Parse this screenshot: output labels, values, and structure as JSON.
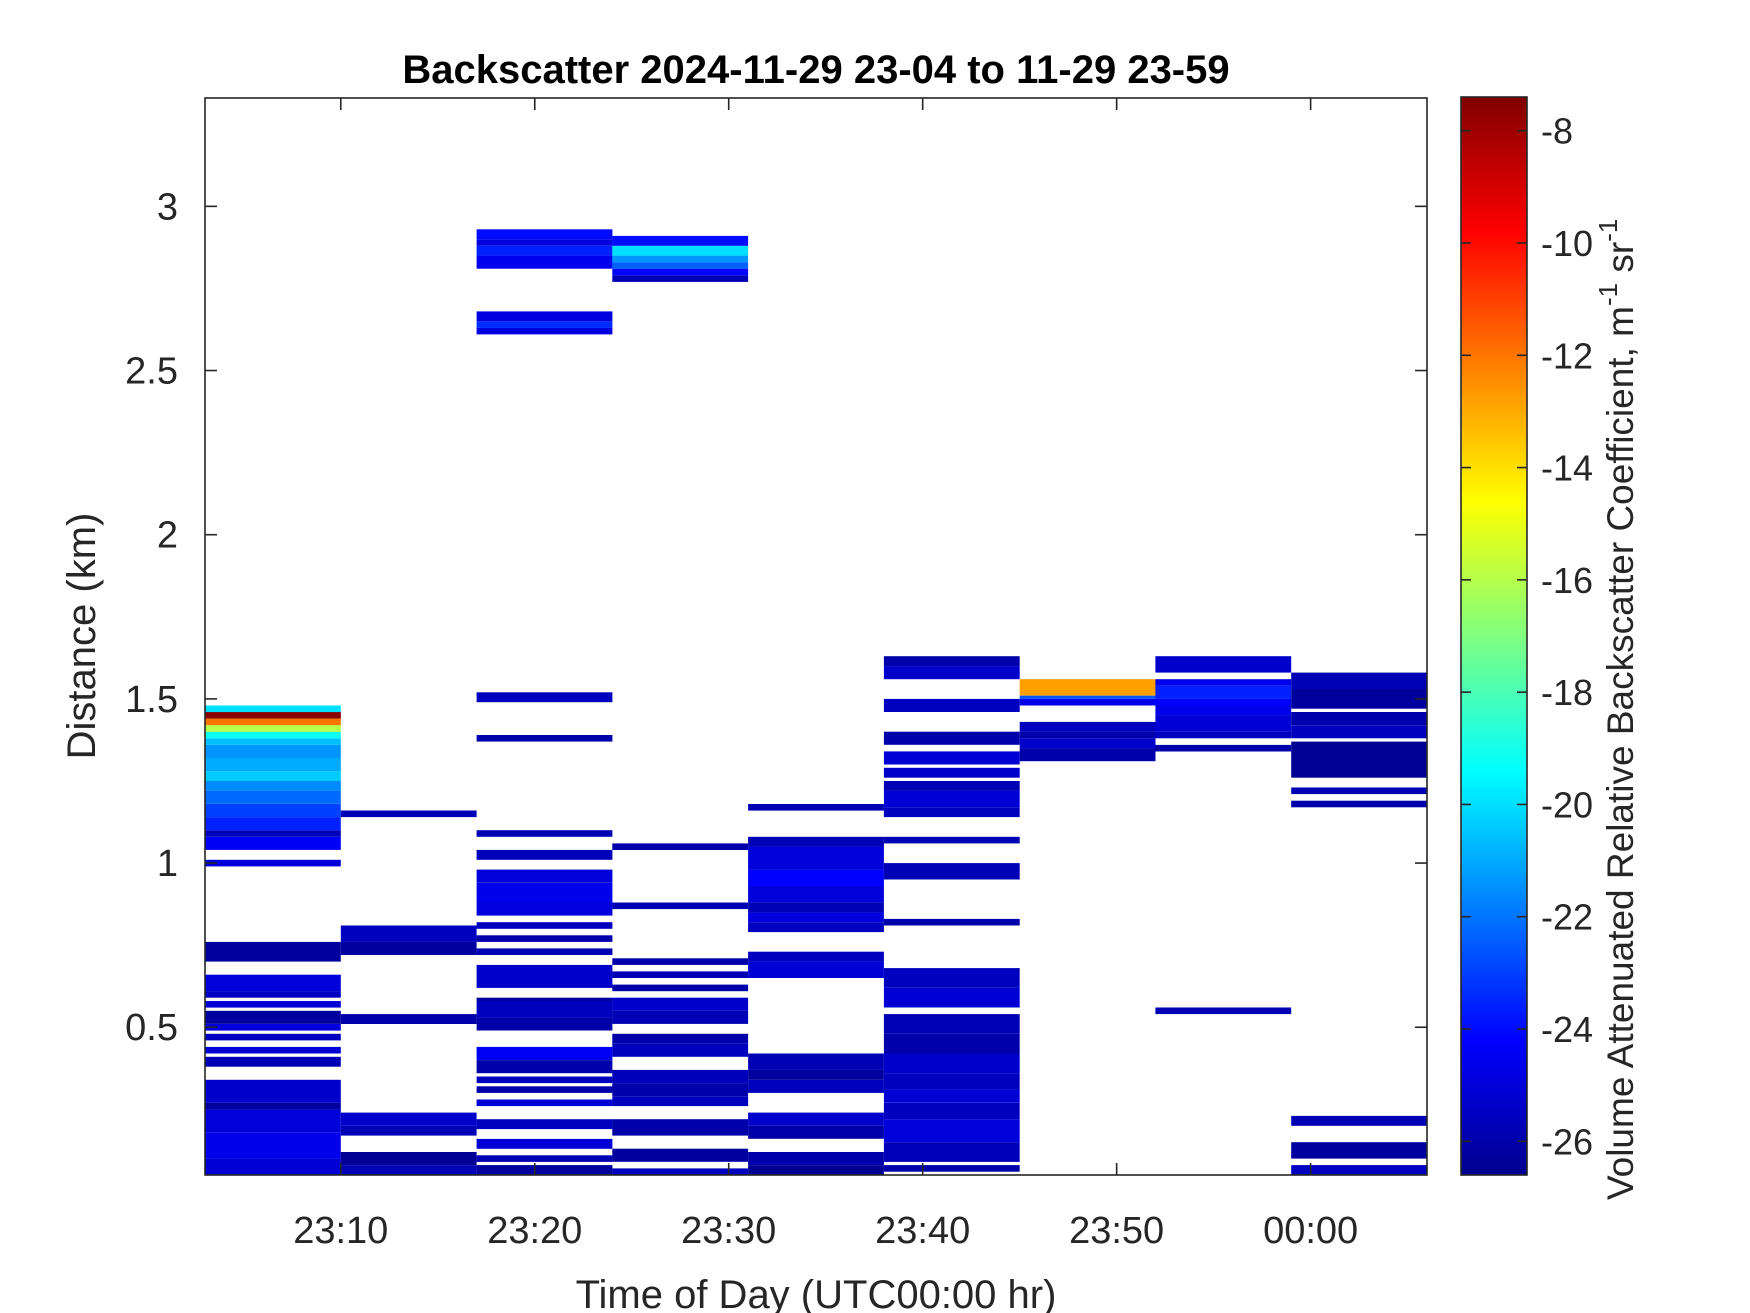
{
  "chart_data": {
    "type": "heatmap",
    "title": "Backscatter 2024-11-29 23-04 to 11-29 23-59",
    "xlabel": "Time of Day (UTC00:00 hr)",
    "ylabel": "Distance (km)",
    "colorbar_label_main": "Volume Attenuated Relative Backscatter Coefficient, m",
    "colorbar_label_sup1": "-1",
    "colorbar_label_mid": " sr",
    "colorbar_label_sup2": "-1",
    "colormap": "jet",
    "clim": [
      -26.6,
      -7.4
    ],
    "xlim_minutes": [
      1383,
      1446
    ],
    "ylim_km": [
      0.05,
      3.33
    ],
    "x_ticks": [
      {
        "value": 1390,
        "label": "23:10"
      },
      {
        "value": 1400,
        "label": "23:20"
      },
      {
        "value": 1410,
        "label": "23:30"
      },
      {
        "value": 1420,
        "label": "23:40"
      },
      {
        "value": 1430,
        "label": "23:50"
      },
      {
        "value": 1440,
        "label": "00:00"
      }
    ],
    "y_ticks": [
      {
        "value": 0.5,
        "label": "0.5"
      },
      {
        "value": 1,
        "label": "1"
      },
      {
        "value": 1.5,
        "label": "1.5"
      },
      {
        "value": 2,
        "label": "2"
      },
      {
        "value": 2.5,
        "label": "2.5"
      },
      {
        "value": 3,
        "label": "3"
      }
    ],
    "c_ticks": [
      {
        "value": -26,
        "label": "-26"
      },
      {
        "value": -24,
        "label": "-24"
      },
      {
        "value": -22,
        "label": "-22"
      },
      {
        "value": -20,
        "label": "-20"
      },
      {
        "value": -18,
        "label": "-18"
      },
      {
        "value": -16,
        "label": "-16"
      },
      {
        "value": -14,
        "label": "-14"
      },
      {
        "value": -12,
        "label": "-12"
      },
      {
        "value": -10,
        "label": "-10"
      },
      {
        "value": -8,
        "label": "-8"
      }
    ],
    "profiles": [
      {
        "t0": 1383,
        "t1": 1390,
        "cells": [
          [
            0.05,
            0.1,
            -25.0
          ],
          [
            0.1,
            0.18,
            -24.6
          ],
          [
            0.18,
            0.25,
            -24.9
          ],
          [
            0.25,
            0.27,
            -26.0
          ],
          [
            0.27,
            0.34,
            -25.2
          ],
          [
            0.38,
            0.41,
            -25.6
          ],
          [
            0.42,
            0.44,
            -25.0
          ],
          [
            0.46,
            0.48,
            -25.4
          ],
          [
            0.49,
            0.51,
            -24.8
          ],
          [
            0.51,
            0.55,
            -26.0
          ],
          [
            0.56,
            0.58,
            -25.0
          ],
          [
            0.59,
            0.61,
            -25.4
          ],
          [
            0.61,
            0.66,
            -24.9
          ],
          [
            0.7,
            0.76,
            -26.0
          ],
          [
            0.99,
            1.01,
            -24.8
          ],
          [
            1.04,
            1.08,
            -24.4
          ],
          [
            1.08,
            1.1,
            -25.5
          ],
          [
            1.1,
            1.14,
            -23.6
          ],
          [
            1.14,
            1.18,
            -23.0
          ],
          [
            1.18,
            1.22,
            -22.2
          ],
          [
            1.22,
            1.25,
            -21.6
          ],
          [
            1.25,
            1.28,
            -20.4
          ],
          [
            1.28,
            1.32,
            -21.0
          ],
          [
            1.32,
            1.36,
            -21.4
          ],
          [
            1.36,
            1.38,
            -20.6
          ],
          [
            1.38,
            1.4,
            -19.2
          ],
          [
            1.4,
            1.42,
            -16.0
          ],
          [
            1.42,
            1.44,
            -12.0
          ],
          [
            1.44,
            1.46,
            -7.6
          ],
          [
            1.46,
            1.48,
            -20.0
          ]
        ]
      },
      {
        "t0": 1390,
        "t1": 1397,
        "cells": [
          [
            0.05,
            0.08,
            -25.6
          ],
          [
            0.08,
            0.12,
            -26.2
          ],
          [
            0.17,
            0.2,
            -25.6
          ],
          [
            0.2,
            0.24,
            -25.2
          ],
          [
            0.51,
            0.54,
            -25.8
          ],
          [
            0.72,
            0.76,
            -26.0
          ],
          [
            0.76,
            0.81,
            -25.4
          ],
          [
            1.14,
            1.16,
            -25.6
          ]
        ]
      },
      {
        "t0": 1397,
        "t1": 1404,
        "cells": [
          [
            0.05,
            0.08,
            -26.0
          ],
          [
            0.09,
            0.11,
            -25.6
          ],
          [
            0.13,
            0.16,
            -25.0
          ],
          [
            0.19,
            0.22,
            -25.4
          ],
          [
            0.26,
            0.28,
            -25.0
          ],
          [
            0.3,
            0.32,
            -25.8
          ],
          [
            0.33,
            0.35,
            -25.4
          ],
          [
            0.36,
            0.4,
            -25.8
          ],
          [
            0.4,
            0.44,
            -24.4
          ],
          [
            0.49,
            0.53,
            -25.8
          ],
          [
            0.53,
            0.58,
            -25.4
          ],
          [
            0.58,
            0.59,
            -26.0
          ],
          [
            0.62,
            0.69,
            -25.2
          ],
          [
            0.72,
            0.74,
            -25.6
          ],
          [
            0.76,
            0.78,
            -25.8
          ],
          [
            0.8,
            0.82,
            -25.4
          ],
          [
            0.84,
            0.88,
            -24.8
          ],
          [
            0.88,
            0.94,
            -24.6
          ],
          [
            0.94,
            0.98,
            -24.9
          ],
          [
            1.01,
            1.04,
            -25.5
          ],
          [
            1.08,
            1.1,
            -25.6
          ],
          [
            1.37,
            1.39,
            -25.8
          ],
          [
            1.49,
            1.52,
            -25.4
          ],
          [
            2.61,
            2.63,
            -24.8
          ],
          [
            2.63,
            2.65,
            -23.4
          ],
          [
            2.65,
            2.68,
            -24.8
          ],
          [
            2.81,
            2.85,
            -24.5
          ],
          [
            2.85,
            2.88,
            -23.6
          ],
          [
            2.88,
            2.9,
            -24.8
          ],
          [
            2.9,
            2.93,
            -24.0
          ]
        ]
      },
      {
        "t0": 1404,
        "t1": 1411,
        "cells": [
          [
            0.05,
            0.07,
            -25.4
          ],
          [
            0.09,
            0.13,
            -26.0
          ],
          [
            0.17,
            0.22,
            -25.8
          ],
          [
            0.26,
            0.29,
            -25.4
          ],
          [
            0.29,
            0.33,
            -25.8
          ],
          [
            0.33,
            0.37,
            -25.5
          ],
          [
            0.41,
            0.45,
            -25.4
          ],
          [
            0.45,
            0.48,
            -25.8
          ],
          [
            0.51,
            0.55,
            -25.6
          ],
          [
            0.55,
            0.59,
            -25.2
          ],
          [
            0.61,
            0.63,
            -25.8
          ],
          [
            0.65,
            0.67,
            -25.6
          ],
          [
            0.69,
            0.71,
            -25.8
          ],
          [
            0.86,
            0.88,
            -25.6
          ],
          [
            1.04,
            1.06,
            -25.8
          ],
          [
            2.77,
            2.79,
            -25.6
          ],
          [
            2.79,
            2.81,
            -24.2
          ],
          [
            2.81,
            2.83,
            -22.4
          ],
          [
            2.83,
            2.85,
            -21.4
          ],
          [
            2.85,
            2.88,
            -20.0
          ],
          [
            2.88,
            2.91,
            -24.0
          ]
        ]
      },
      {
        "t0": 1411,
        "t1": 1418,
        "cells": [
          [
            0.05,
            0.08,
            -26.2
          ],
          [
            0.08,
            0.12,
            -25.8
          ],
          [
            0.16,
            0.2,
            -25.8
          ],
          [
            0.2,
            0.24,
            -25.2
          ],
          [
            0.3,
            0.34,
            -25.4
          ],
          [
            0.34,
            0.37,
            -26.0
          ],
          [
            0.37,
            0.42,
            -25.6
          ],
          [
            0.65,
            0.7,
            -25.0
          ],
          [
            0.7,
            0.73,
            -25.4
          ],
          [
            0.79,
            0.82,
            -25.4
          ],
          [
            0.82,
            0.85,
            -24.8
          ],
          [
            0.85,
            0.88,
            -25.6
          ],
          [
            0.88,
            0.93,
            -24.9
          ],
          [
            0.93,
            0.98,
            -24.2
          ],
          [
            0.98,
            1.05,
            -24.9
          ],
          [
            1.05,
            1.08,
            -25.6
          ],
          [
            1.16,
            1.18,
            -25.6
          ]
        ]
      },
      {
        "t0": 1418,
        "t1": 1425,
        "cells": [
          [
            0.06,
            0.08,
            -25.8
          ],
          [
            0.09,
            0.15,
            -25.5
          ],
          [
            0.15,
            0.22,
            -24.9
          ],
          [
            0.22,
            0.27,
            -25.4
          ],
          [
            0.27,
            0.31,
            -25.0
          ],
          [
            0.31,
            0.36,
            -25.4
          ],
          [
            0.36,
            0.42,
            -25.2
          ],
          [
            0.42,
            0.48,
            -25.8
          ],
          [
            0.48,
            0.54,
            -25.6
          ],
          [
            0.56,
            0.62,
            -25.0
          ],
          [
            0.62,
            0.68,
            -25.4
          ],
          [
            0.81,
            0.83,
            -25.8
          ],
          [
            0.95,
            1.0,
            -25.6
          ],
          [
            1.06,
            1.08,
            -25.6
          ],
          [
            1.14,
            1.17,
            -25.4
          ],
          [
            1.17,
            1.22,
            -25.0
          ],
          [
            1.22,
            1.25,
            -25.6
          ],
          [
            1.26,
            1.29,
            -25.2
          ],
          [
            1.3,
            1.34,
            -25.0
          ],
          [
            1.36,
            1.4,
            -25.8
          ],
          [
            1.46,
            1.5,
            -25.4
          ],
          [
            1.56,
            1.6,
            -25.2
          ],
          [
            1.6,
            1.63,
            -25.8
          ]
        ]
      },
      {
        "t0": 1425,
        "t1": 1432,
        "cells": [
          [
            1.31,
            1.35,
            -25.8
          ],
          [
            1.35,
            1.38,
            -25.2
          ],
          [
            1.38,
            1.4,
            -25.8
          ],
          [
            1.4,
            1.43,
            -25.4
          ],
          [
            1.48,
            1.5,
            -24.6
          ],
          [
            1.5,
            1.51,
            -22.6
          ],
          [
            1.51,
            1.56,
            -12.8
          ]
        ]
      },
      {
        "t0": 1432,
        "t1": 1439,
        "cells": [
          [
            0.54,
            0.56,
            -25.6
          ],
          [
            1.34,
            1.36,
            -25.8
          ],
          [
            1.38,
            1.4,
            -25.4
          ],
          [
            1.4,
            1.45,
            -25.0
          ],
          [
            1.45,
            1.48,
            -24.6
          ],
          [
            1.48,
            1.5,
            -24.2
          ],
          [
            1.5,
            1.54,
            -23.6
          ],
          [
            1.54,
            1.56,
            -24.6
          ],
          [
            1.58,
            1.63,
            -25.2
          ]
        ]
      },
      {
        "t0": 1439,
        "t1": 1446,
        "cells": [
          [
            0.05,
            0.08,
            -25.4
          ],
          [
            0.1,
            0.15,
            -26.0
          ],
          [
            0.2,
            0.23,
            -25.6
          ],
          [
            1.17,
            1.19,
            -25.8
          ],
          [
            1.21,
            1.23,
            -25.6
          ],
          [
            1.26,
            1.37,
            -26.2
          ],
          [
            1.38,
            1.42,
            -25.4
          ],
          [
            1.42,
            1.46,
            -25.8
          ],
          [
            1.47,
            1.53,
            -26.0
          ],
          [
            1.53,
            1.58,
            -25.6
          ]
        ]
      }
    ]
  }
}
